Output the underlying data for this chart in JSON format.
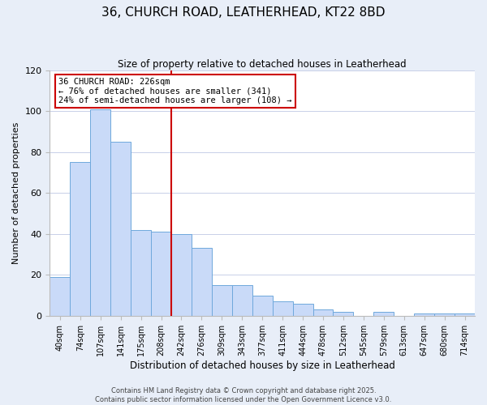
{
  "title_line1": "36, CHURCH ROAD, LEATHERHEAD, KT22 8BD",
  "title_line2": "Size of property relative to detached houses in Leatherhead",
  "xlabel": "Distribution of detached houses by size in Leatherhead",
  "ylabel": "Number of detached properties",
  "bin_labels": [
    "40sqm",
    "74sqm",
    "107sqm",
    "141sqm",
    "175sqm",
    "208sqm",
    "242sqm",
    "276sqm",
    "309sqm",
    "343sqm",
    "377sqm",
    "411sqm",
    "444sqm",
    "478sqm",
    "512sqm",
    "545sqm",
    "579sqm",
    "613sqm",
    "647sqm",
    "680sqm",
    "714sqm"
  ],
  "bar_heights": [
    19,
    75,
    101,
    85,
    42,
    41,
    40,
    33,
    15,
    15,
    10,
    7,
    6,
    3,
    2,
    0,
    2,
    0,
    1,
    1,
    1
  ],
  "bar_color": "#c9daf8",
  "bar_edge_color": "#6fa8dc",
  "vline_color": "#cc0000",
  "annotation_line1": "36 CHURCH ROAD: 226sqm",
  "annotation_line2": "← 76% of detached houses are smaller (341)",
  "annotation_line3": "24% of semi-detached houses are larger (108) →",
  "annotation_box_color": "#ffffff",
  "annotation_box_edge": "#cc0000",
  "ylim": [
    0,
    120
  ],
  "yticks": [
    0,
    20,
    40,
    60,
    80,
    100,
    120
  ],
  "footer_line1": "Contains HM Land Registry data © Crown copyright and database right 2025.",
  "footer_line2": "Contains public sector information licensed under the Open Government Licence v3.0.",
  "bg_color": "#e8eef8",
  "plot_bg_color": "#ffffff",
  "grid_color": "#c8d0e8"
}
